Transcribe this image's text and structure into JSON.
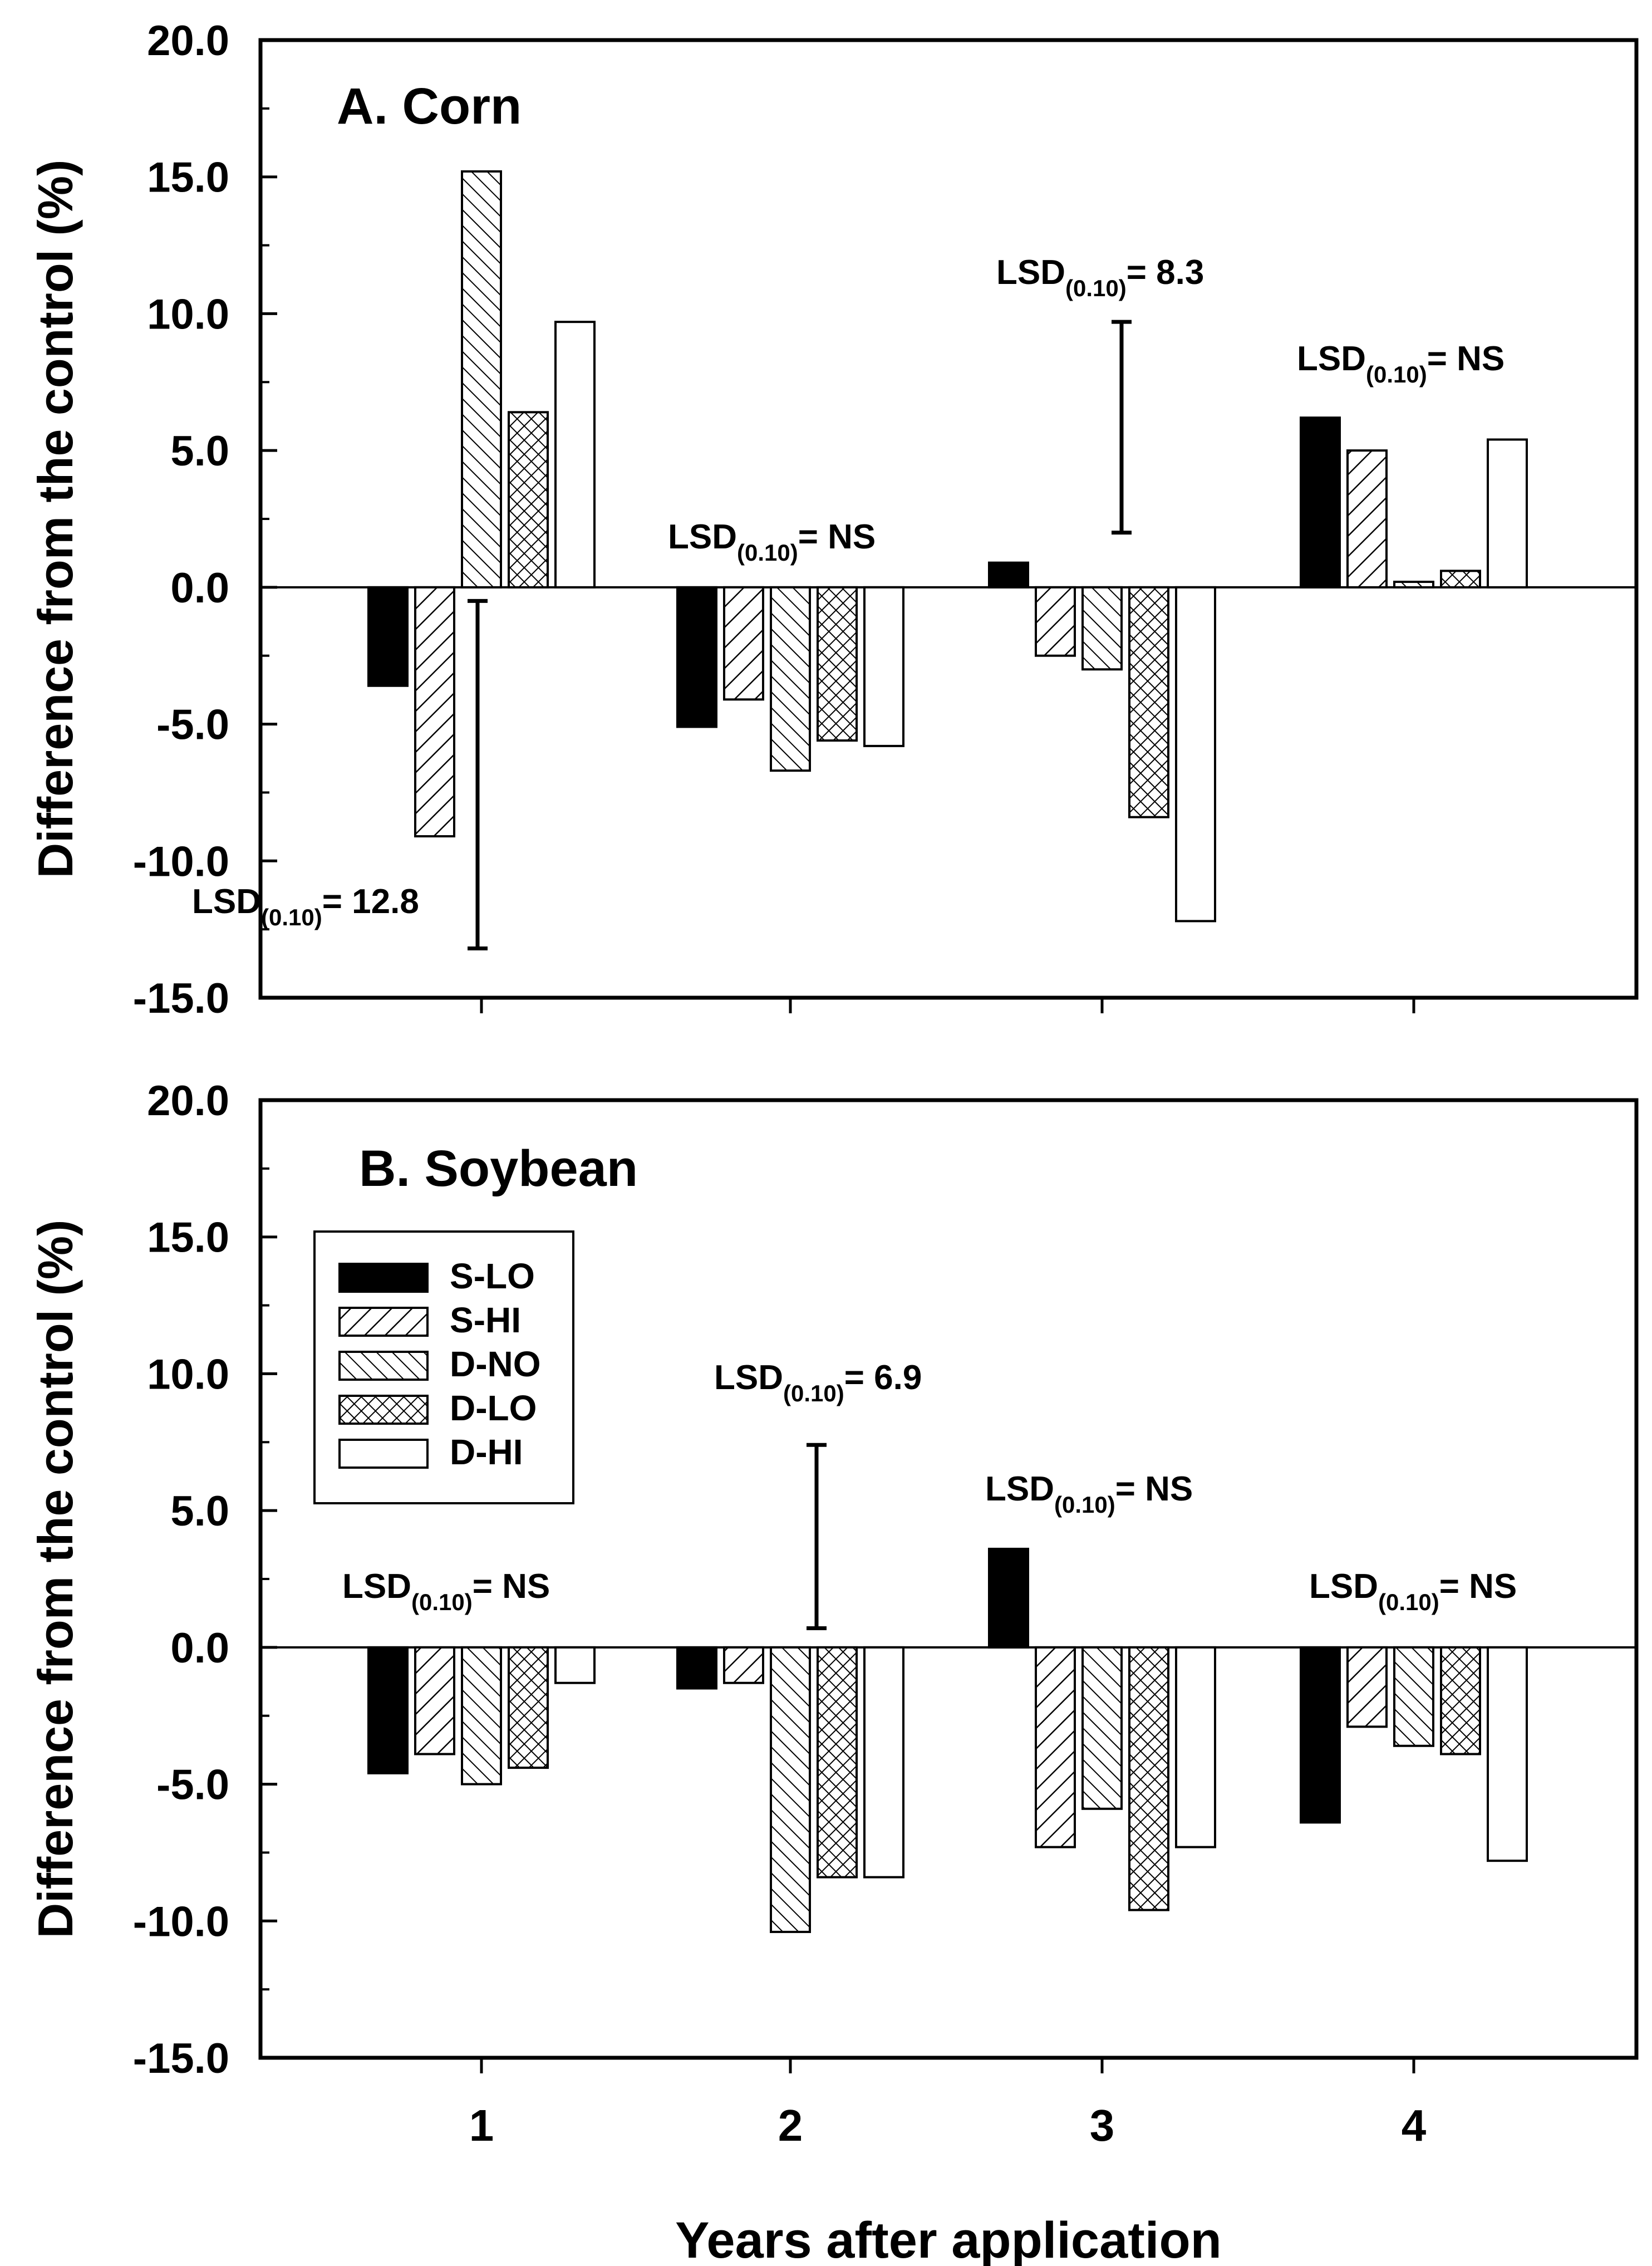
{
  "figure": {
    "xlabel": "Years after application",
    "ylabel": "Difference from the control (%)"
  },
  "legend": {
    "position": "upper-left of panel B",
    "entries": [
      {
        "name": "S-LO",
        "pattern": "solid"
      },
      {
        "name": "S-HI",
        "pattern": "hatch-forward"
      },
      {
        "name": "D-NO",
        "pattern": "hatch-back"
      },
      {
        "name": "D-LO",
        "pattern": "crosshatch"
      },
      {
        "name": "D-HI",
        "pattern": "open"
      }
    ]
  },
  "colors": {
    "bar_fill": "#000000",
    "bar_edge": "#000000",
    "background": "#ffffff"
  },
  "chart_data": [
    {
      "type": "bar",
      "panel": "A",
      "title": "A.  Corn",
      "categories": [
        "1",
        "2",
        "3",
        "4"
      ],
      "ylim": [
        -15,
        20
      ],
      "yticks": [
        "20.0",
        "15.0",
        "10.0",
        "5.0",
        "0.0",
        "-5.0",
        "-10.0",
        "-15.0"
      ],
      "series": [
        {
          "name": "S-LO",
          "values": [
            -3.6,
            -5.1,
            0.9,
            6.2
          ]
        },
        {
          "name": "S-HI",
          "values": [
            -9.1,
            -4.1,
            -2.5,
            5.0
          ]
        },
        {
          "name": "D-NO",
          "values": [
            15.2,
            -6.7,
            -3.0,
            0.2
          ]
        },
        {
          "name": "D-LO",
          "values": [
            6.4,
            -5.6,
            -8.4,
            0.6
          ]
        },
        {
          "name": "D-HI",
          "values": [
            9.7,
            -5.8,
            -12.2,
            5.4
          ]
        }
      ],
      "lsd": [
        {
          "year": "1",
          "prefix": "LSD",
          "sub": "(0.10)",
          "suffix": "= 12.8",
          "bar": [
            -13.2,
            -0.5
          ]
        },
        {
          "year": "2",
          "prefix": "LSD",
          "sub": "(0.10)",
          "suffix": "= NS"
        },
        {
          "year": "3",
          "prefix": "LSD",
          "sub": "(0.10)",
          "suffix": "= 8.3",
          "bar": [
            2.0,
            9.7
          ]
        },
        {
          "year": "4",
          "prefix": "LSD",
          "sub": "(0.10)",
          "suffix": "= NS"
        }
      ]
    },
    {
      "type": "bar",
      "panel": "B",
      "title": "B.  Soybean",
      "categories": [
        "1",
        "2",
        "3",
        "4"
      ],
      "ylim": [
        -15,
        20
      ],
      "yticks": [
        "20.0",
        "15.0",
        "10.0",
        "5.0",
        "0.0",
        "-5.0",
        "-10.0",
        "-15.0"
      ],
      "series": [
        {
          "name": "S-LO",
          "values": [
            -4.6,
            -1.5,
            3.6,
            -6.4
          ]
        },
        {
          "name": "S-HI",
          "values": [
            -3.9,
            -1.3,
            -7.3,
            -2.9
          ]
        },
        {
          "name": "D-NO",
          "values": [
            -5.0,
            -10.4,
            -5.9,
            -3.6
          ]
        },
        {
          "name": "D-LO",
          "values": [
            -4.4,
            -8.4,
            -9.6,
            -3.9
          ]
        },
        {
          "name": "D-HI",
          "values": [
            -1.3,
            -8.4,
            -7.3,
            -7.8
          ]
        }
      ],
      "lsd": [
        {
          "year": "1",
          "prefix": "LSD",
          "sub": "(0.10)",
          "suffix": "= NS"
        },
        {
          "year": "2",
          "prefix": "LSD",
          "sub": "(0.10)",
          "suffix": "= 6.9",
          "bar": [
            0.7,
            7.4
          ]
        },
        {
          "year": "3",
          "prefix": "LSD",
          "sub": "(0.10)",
          "suffix": "= NS"
        },
        {
          "year": "4",
          "prefix": "LSD",
          "sub": "(0.10)",
          "suffix": "= NS"
        }
      ]
    }
  ]
}
